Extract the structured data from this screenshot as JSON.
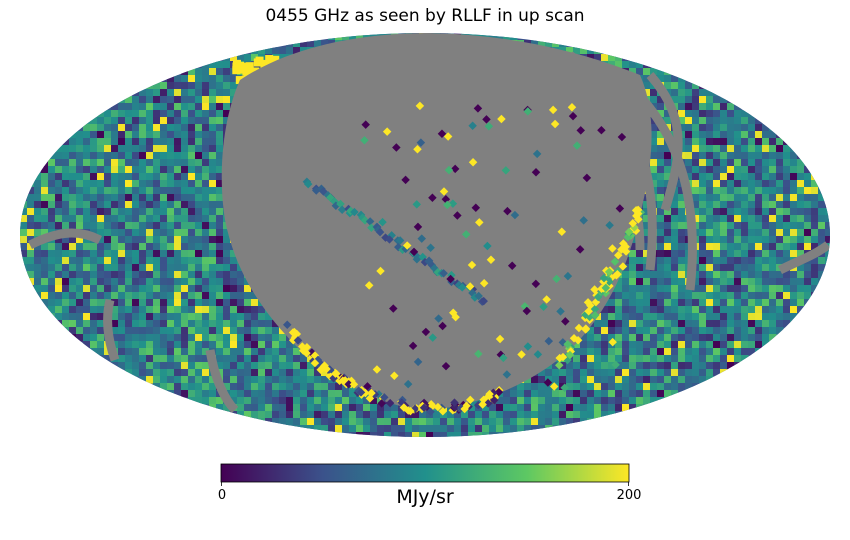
{
  "chart_data": {
    "type": "heatmap",
    "title": "0455 GHz as seen by RLLF in up scan",
    "projection": "mollweide",
    "colormap": "viridis",
    "colormap_stops": [
      "#440154",
      "#3b528b",
      "#21908c",
      "#5dc863",
      "#fde725"
    ],
    "masked_color": "#808080",
    "colorbar": {
      "label": "MJy/sr",
      "min": 0,
      "max": 200,
      "ticks": [
        {
          "value": 0,
          "label": "0"
        },
        {
          "value": 200,
          "label": "200"
        }
      ]
    }
  }
}
